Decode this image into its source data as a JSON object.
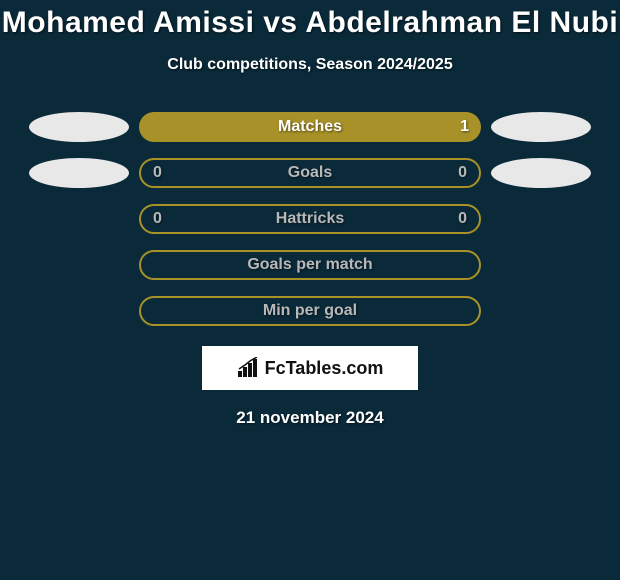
{
  "title": "Mohamed Amissi vs Abdelrahman El Nubi",
  "subtitle": "Club competitions, Season 2024/2025",
  "date": "21 november 2024",
  "colors": {
    "background": "#0a2a3a",
    "accent": "#a79128",
    "ellipse_light": "#e8e8e8",
    "text_light": "#ffffff",
    "text_muted": "#b8b8b8",
    "bar_empty_border": "#a79128"
  },
  "logo": {
    "text": "FcTables.com",
    "background": "#ffffff"
  },
  "stats": [
    {
      "label": "Matches",
      "left_value": "",
      "right_value": "1",
      "left_ellipse_color": "#e8e8e8",
      "right_ellipse_color": "#e8e8e8",
      "left_ellipse_visible": true,
      "right_ellipse_visible": true,
      "bar_filled": true,
      "bar_fill_color": "#a79128",
      "bar_border_color": "#a79128",
      "label_color": "#ffffff",
      "value_color": "#ffffff"
    },
    {
      "label": "Goals",
      "left_value": "0",
      "right_value": "0",
      "left_ellipse_color": "#e8e8e8",
      "right_ellipse_color": "#e8e8e8",
      "left_ellipse_visible": true,
      "right_ellipse_visible": true,
      "bar_filled": false,
      "bar_fill_color": "#a79128",
      "bar_border_color": "#a79128",
      "label_color": "#b8b8b8",
      "value_color": "#b8b8b8"
    },
    {
      "label": "Hattricks",
      "left_value": "0",
      "right_value": "0",
      "left_ellipse_visible": false,
      "right_ellipse_visible": false,
      "bar_filled": false,
      "bar_fill_color": "#a79128",
      "bar_border_color": "#a79128",
      "label_color": "#b8b8b8",
      "value_color": "#b8b8b8"
    },
    {
      "label": "Goals per match",
      "left_value": "",
      "right_value": "",
      "left_ellipse_visible": false,
      "right_ellipse_visible": false,
      "bar_filled": false,
      "bar_fill_color": "#a79128",
      "bar_border_color": "#a79128",
      "label_color": "#b8b8b8",
      "value_color": "#b8b8b8"
    },
    {
      "label": "Min per goal",
      "left_value": "",
      "right_value": "",
      "left_ellipse_visible": false,
      "right_ellipse_visible": false,
      "bar_filled": false,
      "bar_fill_color": "#a79128",
      "bar_border_color": "#a79128",
      "label_color": "#b8b8b8",
      "value_color": "#b8b8b8"
    }
  ]
}
